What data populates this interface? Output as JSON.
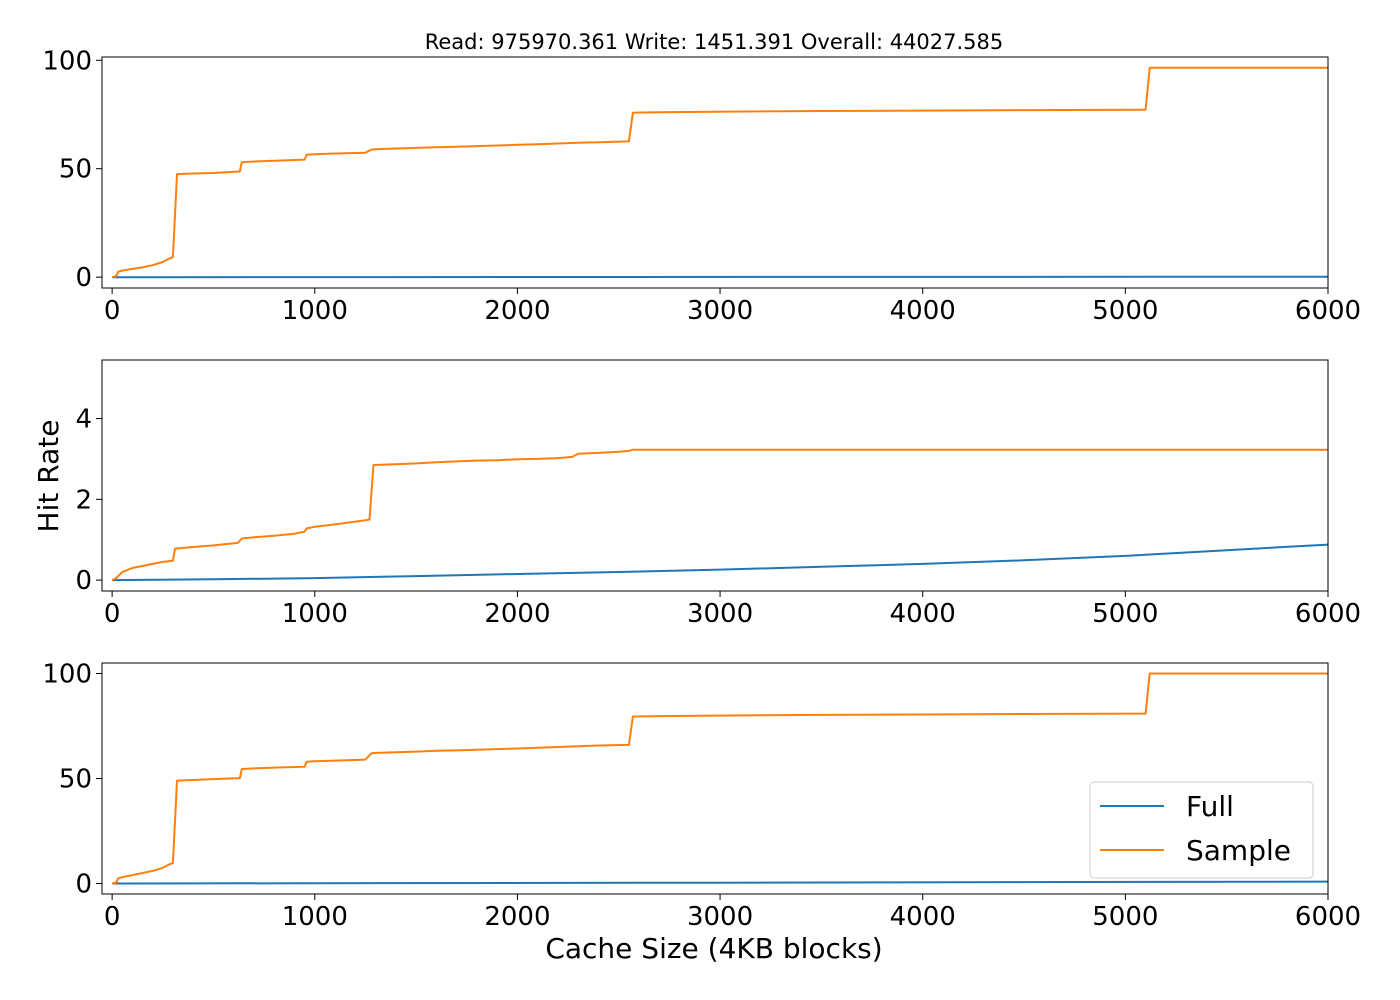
{
  "figure": {
    "title": "Read: 975970.361 Write: 1451.391 Overall: 44027.585",
    "shared_xlabel": "Cache Size (4KB blocks)",
    "shared_ylabel": "Hit Rate"
  },
  "colors": {
    "Full": "#1f77b4",
    "Sample": "#ff7f0e",
    "axes": "#000000",
    "legend_border": "#cccccc",
    "background": "#ffffff"
  },
  "chart_data": [
    {
      "type": "line",
      "title": "Read: 975970.361 Write: 1451.391 Overall: 44027.585",
      "xlabel": "",
      "ylabel": "",
      "xlim": [
        -50,
        6000
      ],
      "ylim": [
        -5,
        101.5
      ],
      "xticks": [
        0,
        1000,
        2000,
        3000,
        4000,
        5000,
        6000
      ],
      "yticks": [
        0,
        50,
        100
      ],
      "grid": false,
      "legend": false,
      "series": [
        {
          "name": "Full",
          "x": [
            0,
            6000
          ],
          "y": [
            0,
            0.2
          ]
        },
        {
          "name": "Sample",
          "x": [
            0,
            20,
            30,
            50,
            100,
            150,
            200,
            250,
            280,
            300,
            320,
            400,
            500,
            630,
            640,
            700,
            800,
            950,
            960,
            1000,
            1100,
            1250,
            1280,
            1300,
            1400,
            1500,
            1600,
            1700,
            1800,
            1900,
            2000,
            2100,
            2200,
            2300,
            2400,
            2550,
            2570,
            2700,
            2900,
            3200,
            3500,
            4000,
            4500,
            5100,
            5120,
            5500,
            6000
          ],
          "y": [
            0,
            0.5,
            2.5,
            3,
            3.8,
            4.5,
            5.5,
            7,
            8.5,
            9.2,
            47.5,
            47.8,
            48,
            48.7,
            53,
            53.3,
            53.7,
            54.2,
            56.5,
            56.7,
            57,
            57.4,
            58.8,
            59,
            59.3,
            59.6,
            59.9,
            60.1,
            60.4,
            60.7,
            61,
            61.3,
            61.6,
            62,
            62.2,
            62.6,
            75.8,
            76,
            76.2,
            76.4,
            76.6,
            76.8,
            77,
            77.2,
            96.5,
            96.5,
            96.5
          ]
        }
      ]
    },
    {
      "type": "line",
      "title": "",
      "xlabel": "",
      "ylabel": "Hit Rate",
      "xlim": [
        -50,
        6000
      ],
      "ylim": [
        -0.27,
        5.45
      ],
      "xticks": [
        0,
        1000,
        2000,
        3000,
        4000,
        5000,
        6000
      ],
      "yticks": [
        0,
        2,
        4
      ],
      "grid": false,
      "legend": false,
      "series": [
        {
          "name": "Full",
          "x": [
            0,
            500,
            1000,
            1500,
            2000,
            2500,
            3000,
            3500,
            4000,
            4500,
            5000,
            5500,
            6000
          ],
          "y": [
            0,
            0.02,
            0.05,
            0.1,
            0.15,
            0.2,
            0.26,
            0.33,
            0.4,
            0.49,
            0.6,
            0.74,
            0.88
          ]
        },
        {
          "name": "Sample",
          "x": [
            0,
            20,
            50,
            100,
            150,
            200,
            250,
            300,
            310,
            400,
            500,
            620,
            640,
            700,
            800,
            900,
            950,
            960,
            1000,
            1100,
            1250,
            1270,
            1290,
            1400,
            1500,
            1600,
            1700,
            1800,
            1900,
            2000,
            2100,
            2200,
            2270,
            2300,
            2400,
            2500,
            2550,
            2570,
            3000,
            4000,
            5000,
            6000
          ],
          "y": [
            0,
            0.05,
            0.2,
            0.3,
            0.35,
            0.4,
            0.45,
            0.48,
            0.78,
            0.82,
            0.86,
            0.92,
            1.03,
            1.06,
            1.1,
            1.15,
            1.2,
            1.28,
            1.32,
            1.38,
            1.48,
            1.5,
            2.85,
            2.87,
            2.89,
            2.92,
            2.94,
            2.96,
            2.97,
            2.99,
            3.0,
            3.02,
            3.05,
            3.13,
            3.15,
            3.18,
            3.2,
            3.23,
            3.23,
            3.23,
            3.23,
            3.23
          ]
        }
      ]
    },
    {
      "type": "line",
      "title": "",
      "xlabel": "Cache Size (4KB blocks)",
      "ylabel": "",
      "xlim": [
        -50,
        6000
      ],
      "ylim": [
        -5,
        105
      ],
      "xticks": [
        0,
        1000,
        2000,
        3000,
        4000,
        5000,
        6000
      ],
      "yticks": [
        0,
        50,
        100
      ],
      "grid": false,
      "legend": true,
      "legend_loc": "lower right",
      "series": [
        {
          "name": "Full",
          "x": [
            0,
            3000,
            6000
          ],
          "y": [
            0,
            0.4,
            0.9
          ]
        },
        {
          "name": "Sample",
          "x": [
            0,
            20,
            30,
            50,
            100,
            150,
            200,
            250,
            280,
            300,
            320,
            400,
            500,
            630,
            640,
            700,
            800,
            950,
            960,
            1000,
            1100,
            1250,
            1280,
            1300,
            1400,
            1500,
            1600,
            1700,
            1800,
            1900,
            2000,
            2100,
            2200,
            2300,
            2400,
            2550,
            2570,
            2700,
            2900,
            3200,
            3500,
            4000,
            4500,
            5100,
            5120,
            5500,
            6000
          ],
          "y": [
            0,
            0.5,
            2.5,
            3,
            4,
            5,
            6,
            7.5,
            9,
            9.7,
            49,
            49.3,
            49.7,
            50.2,
            54.5,
            54.8,
            55.2,
            55.6,
            58,
            58.2,
            58.5,
            59,
            62,
            62.2,
            62.5,
            62.8,
            63.2,
            63.4,
            63.7,
            64,
            64.3,
            64.6,
            65,
            65.4,
            65.7,
            66,
            79.5,
            79.7,
            79.9,
            80.1,
            80.3,
            80.5,
            80.7,
            80.9,
            100,
            100,
            100
          ]
        }
      ]
    }
  ]
}
